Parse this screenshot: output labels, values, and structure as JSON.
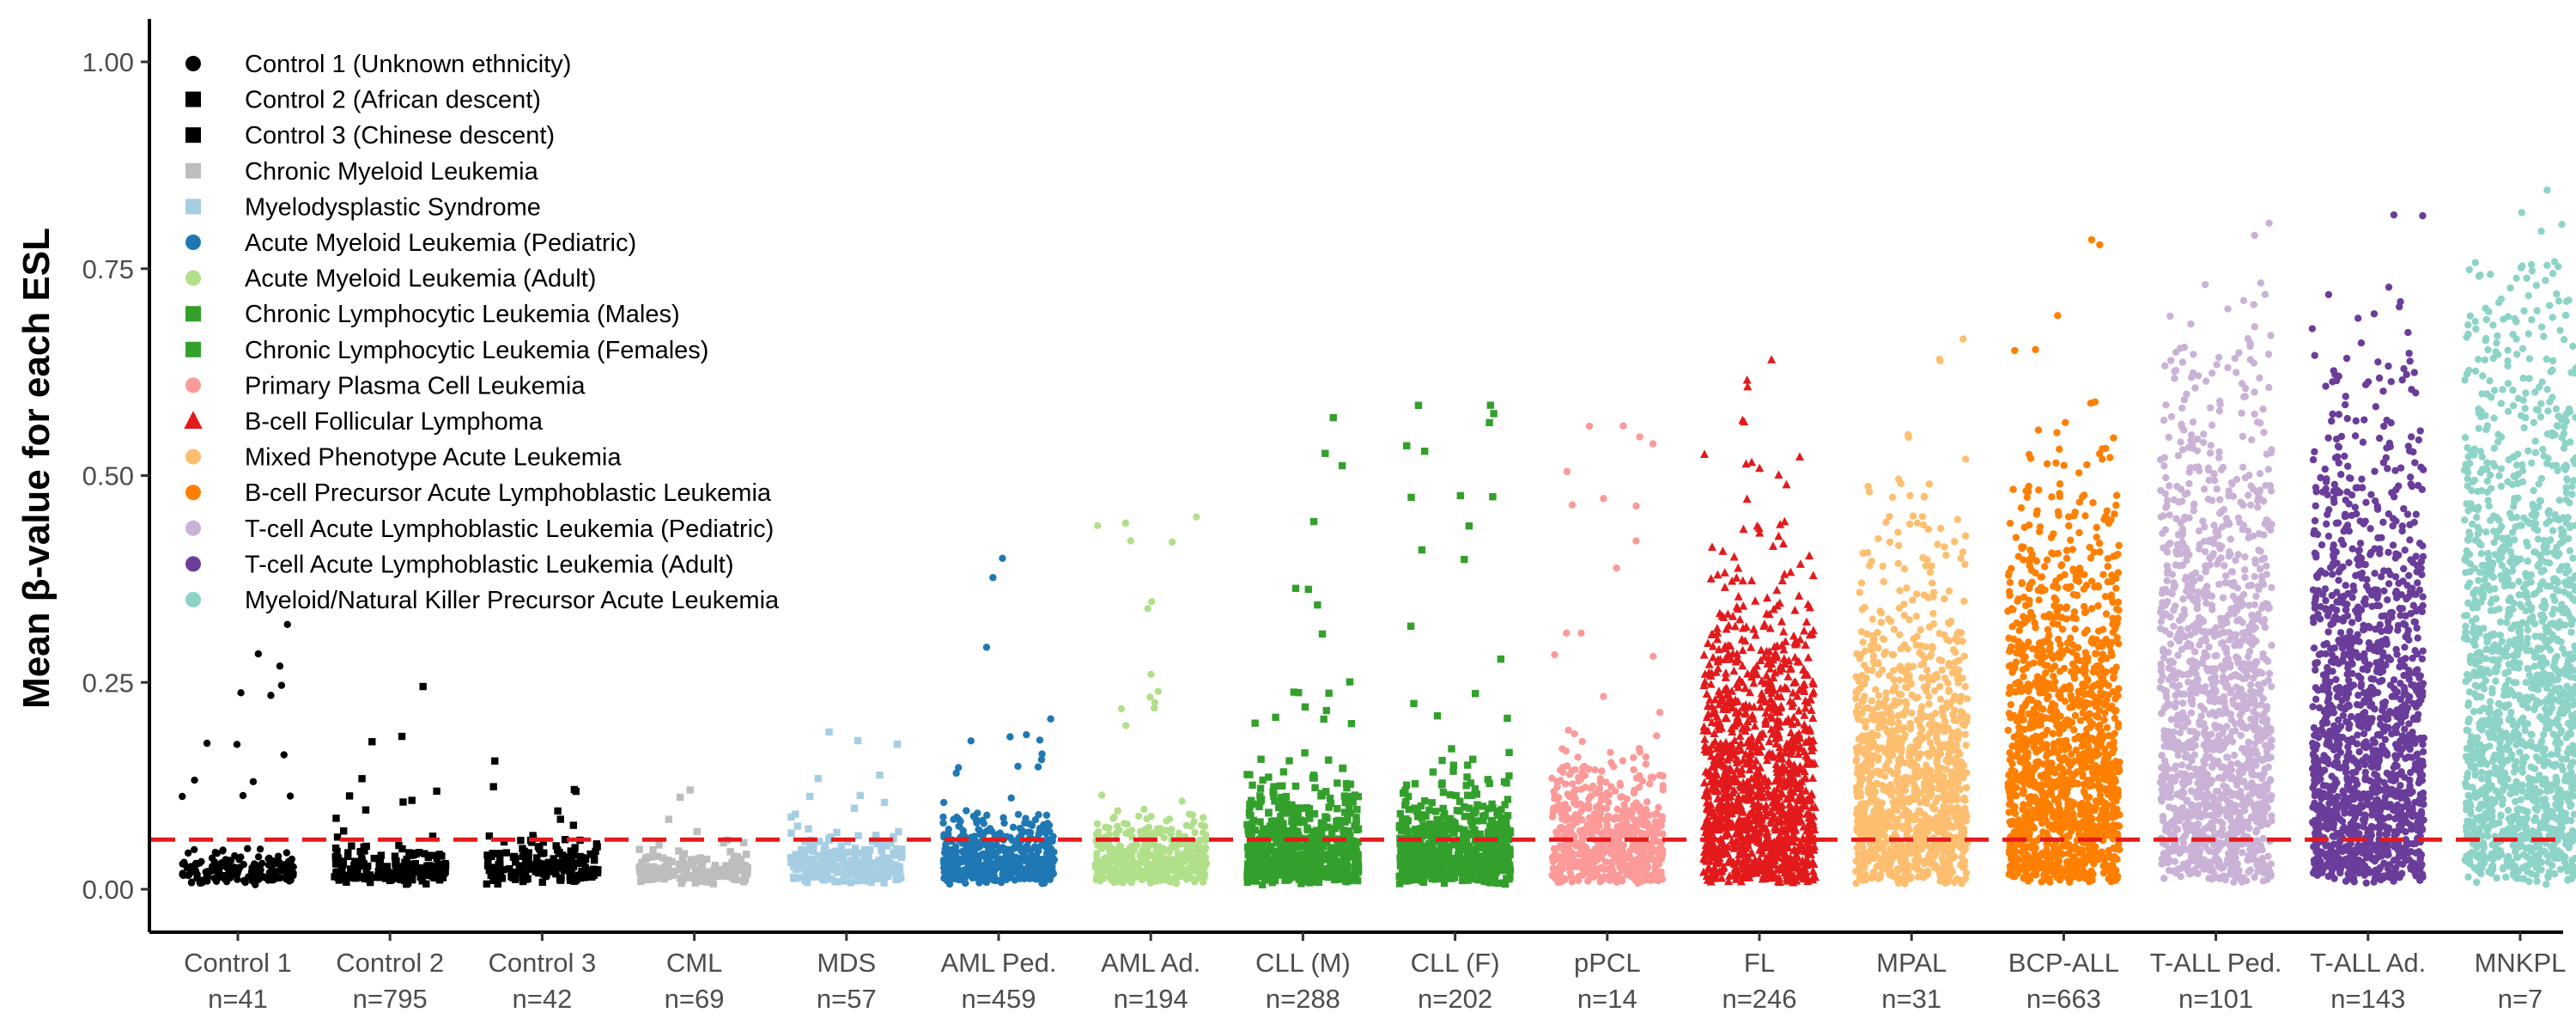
{
  "chart_data": {
    "type": "scatter",
    "title": "",
    "xlabel": "",
    "ylabel": "Mean β-value for each ESL",
    "ylim": [
      -0.05,
      1.05
    ],
    "y_ticks": [
      "0.00",
      "0.25",
      "0.50",
      "0.75",
      "1.00"
    ],
    "grid": false,
    "legend_position": "top-left",
    "reference_line": {
      "y": 0.06,
      "style": "dashed",
      "color": "#e41a1c"
    },
    "series": [
      {
        "name": "Control 1 (Unknown ethnicity)",
        "category": "Control 1",
        "n_label": "n=41",
        "color": "#000000",
        "shape": "circle",
        "median": 0.02,
        "max": 0.32,
        "density": 170,
        "outliers": 14
      },
      {
        "name": "Control 2 (African descent)",
        "category": "Control 2",
        "n_label": "n=795",
        "color": "#000000",
        "shape": "square",
        "median": 0.02,
        "max": 0.245,
        "density": 190,
        "outliers": 10
      },
      {
        "name": "Control 3 (Chinese descent)",
        "category": "Control 3",
        "n_label": "n=42",
        "color": "#000000",
        "shape": "square",
        "median": 0.025,
        "max": 0.155,
        "density": 190,
        "outliers": 8
      },
      {
        "name": "Chronic Myeloid Leukemia",
        "category": "CML",
        "n_label": "n=69",
        "color": "#bdbdbd",
        "shape": "square",
        "median": 0.02,
        "max": 0.12,
        "density": 170,
        "outliers": 8
      },
      {
        "name": "Myelodysplastic Syndrome",
        "category": "MDS",
        "n_label": "n=57",
        "color": "#a6cee3",
        "shape": "square",
        "median": 0.03,
        "max": 0.19,
        "density": 260,
        "outliers": 10
      },
      {
        "name": "Acute Myeloid Leukemia (Pediatric)",
        "category": "AML Ped.",
        "n_label": "n=459",
        "color": "#1f78b4",
        "shape": "circle",
        "median": 0.04,
        "max": 0.4,
        "density": 520,
        "outliers": 14
      },
      {
        "name": "Acute Myeloid Leukemia (Adult)",
        "category": "AML Ad.",
        "n_label": "n=194",
        "color": "#b2df8a",
        "shape": "circle",
        "median": 0.04,
        "max": 0.45,
        "density": 480,
        "outliers": 14
      },
      {
        "name": "Chronic Lymphocytic Leukemia (Males)",
        "category": "CLL (M)",
        "n_label": "n=288",
        "color": "#33a02c",
        "shape": "square",
        "median": 0.06,
        "max": 0.57,
        "density": 620,
        "outliers": 18
      },
      {
        "name": "Chronic Lymphocytic Leukemia (Females)",
        "category": "CLL (F)",
        "n_label": "n=202",
        "color": "#33a02c",
        "shape": "square",
        "median": 0.06,
        "max": 0.585,
        "density": 620,
        "outliers": 18
      },
      {
        "name": "Primary Plasma Cell Leukemia",
        "category": "pPCL",
        "n_label": "n=14",
        "color": "#fb9a99",
        "shape": "circle",
        "median": 0.08,
        "max": 0.56,
        "density": 620,
        "outliers": 16
      },
      {
        "name": "B-cell Follicular Lymphoma",
        "category": "FL",
        "n_label": "n=246",
        "color": "#e31a1c",
        "shape": "triangle",
        "median": 0.18,
        "max": 0.64,
        "density": 1250,
        "outliers": 22
      },
      {
        "name": "Mixed Phenotype Acute Leukemia",
        "category": "MPAL",
        "n_label": "n=31",
        "color": "#fdbf6f",
        "shape": "circle",
        "median": 0.2,
        "max": 0.665,
        "density": 1150,
        "outliers": 14
      },
      {
        "name": "B-cell Precursor Acute Lymphoblastic Leukemia",
        "category": "BCP-ALL",
        "n_label": "n=663",
        "color": "#ff7f00",
        "shape": "circle",
        "median": 0.25,
        "max": 0.785,
        "density": 1400,
        "outliers": 18
      },
      {
        "name": "T-cell Acute Lymphoblastic Leukemia (Pediatric)",
        "category": "T-ALL Ped.",
        "n_label": "n=101",
        "color": "#cab2d6",
        "shape": "circle",
        "median": 0.32,
        "max": 0.805,
        "density": 1400,
        "outliers": 16
      },
      {
        "name": "T-cell Acute Lymphoblastic Leukemia (Adult)",
        "category": "T-ALL Ad.",
        "n_label": "n=143",
        "color": "#6a3d9a",
        "shape": "circle",
        "median": 0.3,
        "max": 0.815,
        "density": 1400,
        "outliers": 16
      },
      {
        "name": "Myeloid/Natural Killer Precursor Acute Leukemia",
        "category": "MNKPL",
        "n_label": "n=7",
        "color": "#8dd3c7",
        "shape": "circle",
        "median": 0.38,
        "max": 0.845,
        "density": 1500,
        "outliers": 16
      }
    ]
  }
}
